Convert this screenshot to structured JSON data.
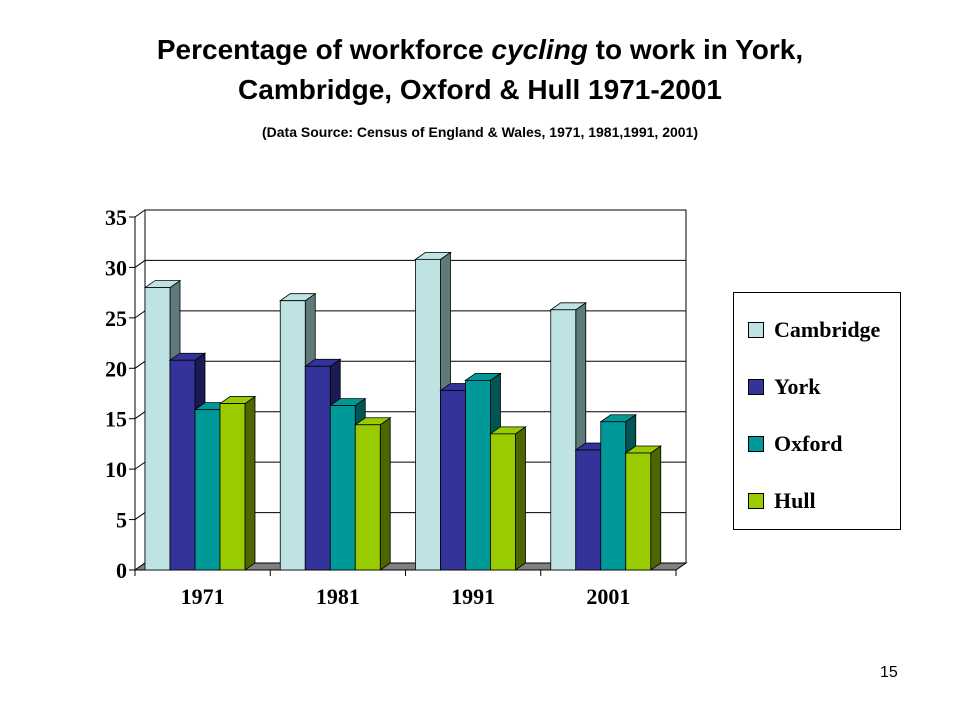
{
  "slide": {
    "title_before": "Percentage of workforce ",
    "title_emph": "cycling",
    "title_after": " to work in York,",
    "title_line2": "Cambridge, Oxford & Hull 1971-2001",
    "subtitle": "(Data Source: Census of England & Wales, 1971, 1981,1991, 2001)",
    "page_number": "15"
  },
  "chart_data": {
    "type": "bar",
    "three_d": true,
    "categories": [
      "1971",
      "1981",
      "1991",
      "2001"
    ],
    "series": [
      {
        "name": "Cambridge",
        "color": "#bfe3e3",
        "side": "#5f7a7a",
        "values": [
          28,
          26.7,
          30.8,
          25.8
        ]
      },
      {
        "name": "York",
        "color": "#333399",
        "side": "#1a1a55",
        "values": [
          20.8,
          20.2,
          17.8,
          11.9
        ]
      },
      {
        "name": "Oxford",
        "color": "#009999",
        "side": "#005555",
        "values": [
          15.9,
          16.3,
          18.8,
          14.7
        ]
      },
      {
        "name": "Hull",
        "color": "#99cc00",
        "side": "#4d6600",
        "values": [
          16.5,
          14.4,
          13.5,
          11.6
        ]
      }
    ],
    "ylim": [
      0,
      35
    ],
    "yticks": [
      "0",
      "5",
      "10",
      "15",
      "20",
      "25",
      "30",
      "35"
    ],
    "grid": true,
    "legend_position": "right"
  }
}
